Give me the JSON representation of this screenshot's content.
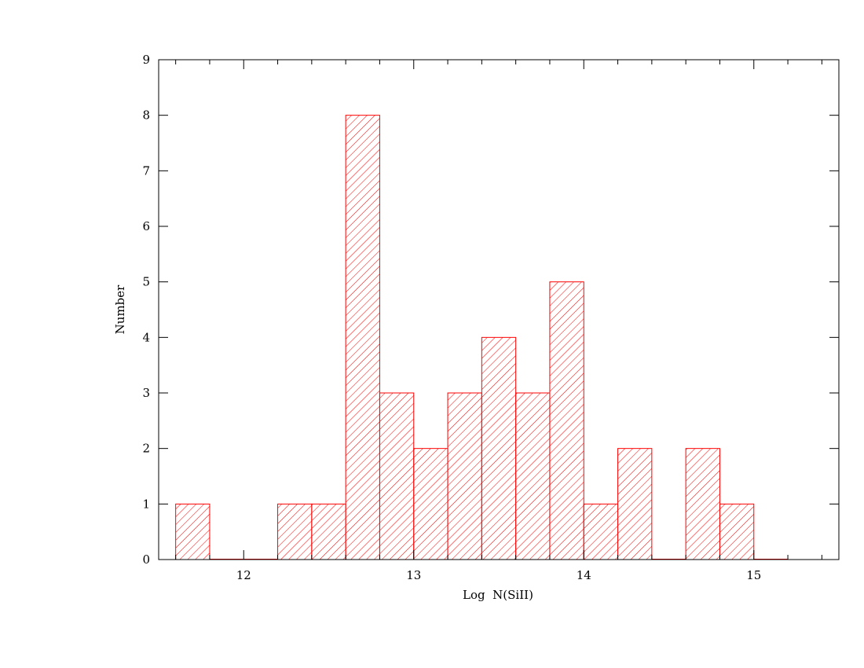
{
  "chart_data": {
    "type": "bar",
    "histogram": true,
    "title": "",
    "xlabel": "Log  N(SiII)",
    "ylabel": "Number",
    "xlim": [
      11.5,
      15.5
    ],
    "ylim": [
      0,
      9
    ],
    "x_ticks": [
      "12",
      "13",
      "14",
      "15"
    ],
    "y_ticks": [
      "0",
      "1",
      "2",
      "3",
      "4",
      "5",
      "6",
      "7",
      "8",
      "9"
    ],
    "bin_width": 0.2,
    "bin_starts": [
      11.6,
      11.8,
      12.0,
      12.2,
      12.4,
      12.6,
      12.8,
      13.0,
      13.2,
      13.4,
      13.6,
      13.8,
      14.0,
      14.2,
      14.4,
      14.6,
      14.8,
      15.0
    ],
    "values": [
      1,
      0,
      0,
      1,
      1,
      8,
      3,
      2,
      3,
      4,
      3,
      5,
      1,
      2,
      0,
      2,
      1,
      0
    ],
    "bar_color": "#ff0000",
    "fill_pattern": "diagonal-hatch",
    "grid": false,
    "legend": "none"
  }
}
